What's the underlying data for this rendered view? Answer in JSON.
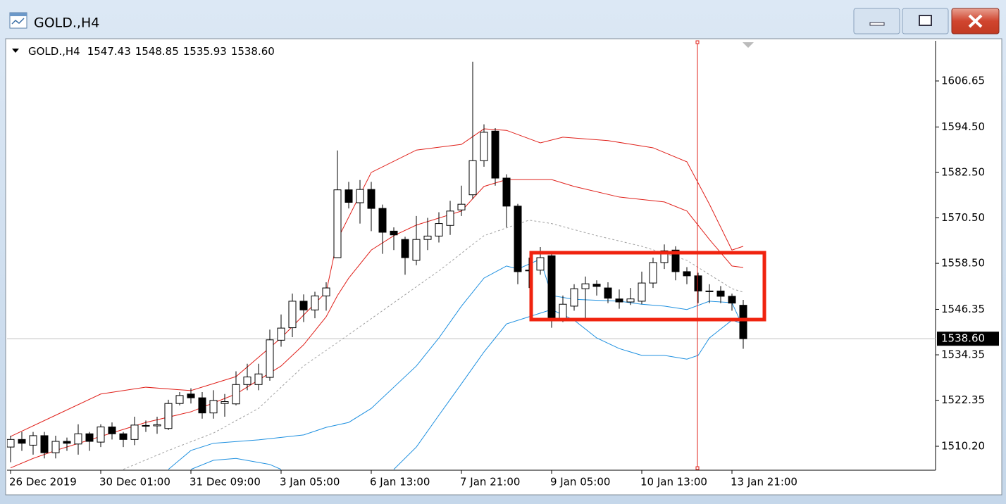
{
  "window": {
    "title": "GOLD.,H4"
  },
  "chart_data": {
    "type": "candlestick",
    "symbol": "GOLD.,H4",
    "header_values": [
      "1547.43",
      "1548.85",
      "1535.93",
      "1538.60"
    ],
    "categories": [
      "26 Dec 2019",
      null,
      null,
      null,
      null,
      null,
      null,
      null,
      "30 Dec 01:00",
      null,
      null,
      null,
      null,
      null,
      null,
      null,
      "31 Dec 09:00",
      null,
      null,
      null,
      null,
      null,
      null,
      null,
      "3 Jan 05:00",
      null,
      null,
      null,
      null,
      null,
      null,
      null,
      "6 Jan 13:00",
      null,
      null,
      null,
      null,
      null,
      null,
      null,
      "7 Jan 21:00",
      null,
      null,
      null,
      null,
      null,
      null,
      null,
      "9 Jan 05:00",
      null,
      null,
      null,
      null,
      null,
      null,
      null,
      "10 Jan 13:00",
      null,
      null,
      null,
      null,
      null,
      null,
      null,
      "13 Jan 21:00",
      null
    ],
    "open": [
      1510,
      1512,
      1510.5,
      1513,
      1508.5,
      1511.5,
      1510.8,
      1513.5,
      1511.3,
      1515.3,
      1513.5,
      1512,
      1515.7,
      1515.6,
      1514.9,
      1521.5,
      1524,
      1523,
      1519,
      1521.5,
      1521.4,
      1526.5,
      1526.5,
      1528.4,
      1538.2,
      1541.5,
      1548.5,
      1546.2,
      1549.9,
      1560,
      1577.9,
      1574.5,
      1578,
      1573,
      1567,
      1564.8,
      1559.3,
      1564.8,
      1565.7,
      1568.5,
      1572.6,
      1576.6,
      1585.6,
      1593.4,
      1581,
      1573.6,
      1556.7,
      1556.7,
      1560.5,
      1544,
      1547.2,
      1551.8,
      1553,
      1552,
      1549.1,
      1548.3,
      1548.5,
      1553.3,
      1558.7,
      1562,
      1556.3,
      1555.2,
      1551.2,
      1551.2,
      1549.8,
      1547.43
    ],
    "high": [
      1513,
      1514,
      1514,
      1514,
      1513,
      1512.5,
      1516,
      1514,
      1516,
      1516.5,
      1514,
      1518,
      1517,
      1518,
      1522.5,
      1524.5,
      1525.5,
      1524.5,
      1525,
      1524,
      1530,
      1532,
      1532,
      1541,
      1545,
      1550.5,
      1550.3,
      1551,
      1553.5,
      1588.3,
      1580,
      1580.5,
      1580,
      1574,
      1568,
      1565.5,
      1571,
      1570.5,
      1572,
      1575,
      1579,
      1611.7,
      1595.2,
      1594.2,
      1582,
      1574.2,
      1560,
      1562.8,
      1561,
      1550,
      1553,
      1555,
      1554,
      1553.5,
      1551.6,
      1552,
      1556.3,
      1560,
      1563.5,
      1563,
      1557.5,
      1556,
      1553,
      1552.5,
      1550.5,
      1548.85
    ],
    "low": [
      1506,
      1509,
      1508,
      1507,
      1507,
      1509,
      1508,
      1509,
      1510,
      1512,
      1510,
      1510.5,
      1514,
      1513.5,
      1514.5,
      1521,
      1521.5,
      1517.5,
      1517.5,
      1518,
      1521,
      1525,
      1525,
      1527.5,
      1536.5,
      1539,
      1543,
      1544,
      1546,
      1560,
      1573,
      1569,
      1567,
      1561,
      1562,
      1555.5,
      1558,
      1562,
      1564,
      1566,
      1571,
      1575.5,
      1584,
      1579,
      1568,
      1553,
      1552,
      1555.5,
      1541.5,
      1543,
      1546,
      1544,
      1550,
      1548,
      1546.5,
      1547.5,
      1547.7,
      1552,
      1557,
      1554,
      1553,
      1548,
      1548,
      1548,
      1546,
      1535.93
    ],
    "close": [
      1512,
      1511,
      1513,
      1508.5,
      1511.5,
      1511,
      1513.5,
      1511.5,
      1515.3,
      1513.5,
      1512,
      1515.8,
      1515.5,
      1515.9,
      1521.5,
      1523.6,
      1523,
      1519,
      1522.3,
      1522,
      1526.5,
      1528.5,
      1529.3,
      1538.3,
      1541.4,
      1548.5,
      1546.2,
      1549.9,
      1552,
      1577.9,
      1574.6,
      1578,
      1573,
      1566.7,
      1566,
      1560,
      1564.8,
      1565.7,
      1569,
      1572.3,
      1574.1,
      1585.6,
      1593.1,
      1581,
      1573.6,
      1556.3,
      1556.6,
      1560,
      1544,
      1547.7,
      1551.8,
      1553.1,
      1552.4,
      1549.3,
      1548.3,
      1549.1,
      1553.3,
      1558.7,
      1561.8,
      1556.3,
      1555.2,
      1551.2,
      1551.1,
      1549.8,
      1548,
      1538.6
    ],
    "up_color": "#ffffff",
    "down_color": "#000000",
    "bands": [
      {
        "color": "#e0201a",
        "dash": false,
        "x": [
          0,
          4,
          8,
          12,
          16,
          20,
          24,
          28,
          29,
          32,
          36,
          40,
          42,
          44,
          47,
          49,
          53,
          57,
          60,
          62,
          64,
          65
        ],
        "values": [
          1512.8,
          1518.4,
          1524,
          1525.8,
          1524.9,
          1528.6,
          1538.8,
          1550.9,
          1564.8,
          1582.5,
          1588.4,
          1589.9,
          1594,
          1593.6,
          1590.3,
          1591.8,
          1590.9,
          1589,
          1585.3,
          1574.1,
          1562,
          1563
        ]
      },
      {
        "color": "#e0201a",
        "dash": false,
        "x": [
          0,
          2,
          4,
          8,
          12,
          16,
          20,
          24,
          26,
          28,
          29,
          30,
          32,
          34,
          36,
          40,
          42,
          44,
          48,
          50,
          54,
          58,
          60,
          62,
          64,
          65
        ],
        "values": [
          1504.5,
          1507,
          1509.1,
          1512.8,
          1516.5,
          1519.3,
          1524,
          1531.4,
          1537,
          1544.4,
          1550,
          1554.6,
          1562,
          1565.8,
          1568.6,
          1572.3,
          1578.8,
          1580.6,
          1580.6,
          1578.8,
          1576,
          1574.7,
          1572.3,
          1564.8,
          1557.8,
          1557.4
        ]
      },
      {
        "color": "#a0a0a0",
        "dash": true,
        "x": [
          10,
          14,
          18,
          22,
          26,
          30,
          34,
          38,
          42,
          46,
          48,
          52,
          56,
          60,
          64,
          65
        ],
        "values": [
          1504.1,
          1509.1,
          1513.7,
          1520.2,
          1531.4,
          1539.7,
          1548.1,
          1556.5,
          1565.8,
          1569.9,
          1569,
          1565.8,
          1563,
          1559.3,
          1551.8,
          1550.9
        ]
      },
      {
        "color": "#1e90e0",
        "dash": false,
        "x": [
          14,
          16,
          18,
          22,
          26,
          28,
          30,
          32,
          34,
          36,
          38,
          40,
          42,
          44,
          45,
          47,
          48,
          50,
          54,
          56,
          58,
          60,
          62,
          64,
          65
        ],
        "values": [
          1504.1,
          1509.1,
          1511,
          1511.9,
          1513.2,
          1515.2,
          1516.5,
          1520.2,
          1525.8,
          1531.4,
          1538.8,
          1547.2,
          1554.6,
          1557.8,
          1557,
          1559.6,
          1550,
          1549,
          1548.5,
          1547.7,
          1547.2,
          1546.3,
          1548.5,
          1548.1,
          1541.6
        ]
      },
      {
        "color": "#1e90e0",
        "dash": false,
        "x": [
          16,
          18,
          20,
          23,
          24,
          30,
          34,
          36,
          38,
          40,
          42,
          44,
          46,
          48,
          50,
          52,
          54,
          56,
          58,
          60,
          61,
          62,
          64,
          65
        ],
        "values": [
          1504.1,
          1506.5,
          1507,
          1505.4,
          1504.1,
          null,
          1504.1,
          1510,
          1518.4,
          1526.7,
          1535.1,
          1542.5,
          1544.4,
          1546.3,
          1543.5,
          1538.8,
          1536,
          1534.2,
          1534.2,
          1533.2,
          1534.2,
          1538.8,
          1543.5,
          1542.5
        ]
      }
    ],
    "ylim": [
      1504.07,
      1617.24
    ],
    "yticks": [
      1606.65,
      {
        "value": 1594.5,
        "label": "1594.50"
      },
      {
        "value": 1582.5,
        "label": "1582.50"
      },
      {
        "value": 1570.5,
        "label": "1570.50"
      },
      {
        "value": 1558.5,
        "label": "1558.50"
      },
      1546.35,
      1534.35,
      1522.35,
      {
        "value": 1510.2,
        "label": "1510.20"
      }
    ],
    "current_price": {
      "value": 1538.6,
      "label": "1538.60"
    }
  }
}
